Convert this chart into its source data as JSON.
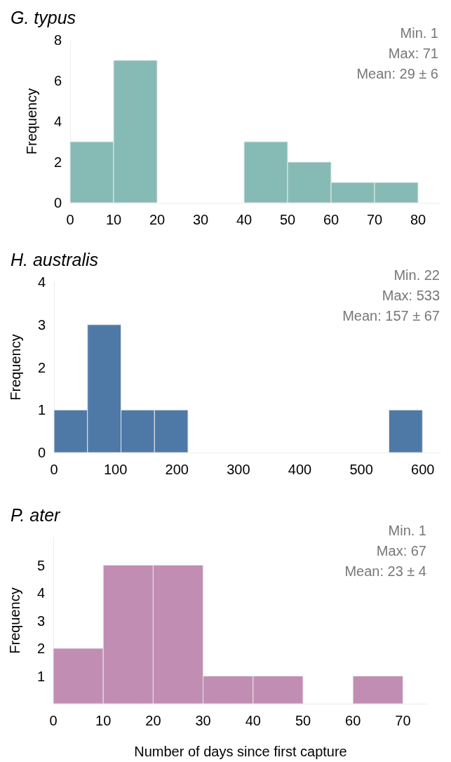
{
  "chart_data": [
    {
      "type": "histogram",
      "title": "G. typus",
      "ylabel": "Frequency",
      "bins": [
        0,
        10,
        20,
        30,
        40,
        50,
        60,
        70,
        80
      ],
      "values": [
        3,
        7,
        0,
        0,
        3,
        2,
        1,
        1
      ],
      "color": "#86bbb5",
      "xlim": [
        0,
        85
      ],
      "xticks": [
        0,
        10,
        20,
        30,
        40,
        50,
        60,
        70,
        80
      ],
      "ylim": [
        0,
        8
      ],
      "yticks": [
        0,
        2,
        4,
        6,
        8
      ],
      "grid": false,
      "annotations": [
        "Min. 1",
        "Max: 71",
        "Mean: 29 ± 6"
      ]
    },
    {
      "type": "histogram",
      "title": "H. australis",
      "ylabel": "Frequency",
      "bins": [
        0,
        54.5,
        109,
        163.5,
        218,
        272.5,
        327,
        381.5,
        436,
        490.5,
        545,
        599.5
      ],
      "values": [
        1,
        3,
        1,
        1,
        0,
        0,
        0,
        0,
        0,
        0,
        1
      ],
      "color": "#4e79a7",
      "xlim": [
        0,
        630
      ],
      "xticks": [
        0,
        100,
        200,
        300,
        400,
        500,
        600
      ],
      "ylim": [
        0,
        4
      ],
      "yticks": [
        0,
        1,
        2,
        3,
        4
      ],
      "grid": false,
      "annotations": [
        "Min. 22",
        "Max: 533",
        "Mean: 157 ± 67"
      ]
    },
    {
      "type": "histogram",
      "title": "P. ater",
      "ylabel": "Frequency",
      "xlabel": "Number of days since first capture",
      "bins": [
        0,
        10,
        20,
        30,
        40,
        50,
        60,
        70
      ],
      "values": [
        2,
        5,
        5,
        1,
        1,
        0,
        1
      ],
      "color": "#c28db3",
      "xlim": [
        0,
        75
      ],
      "xticks": [
        0,
        10,
        20,
        30,
        40,
        50,
        60,
        70
      ],
      "ylim": [
        0,
        6
      ],
      "yticks": [
        1,
        2,
        3,
        4,
        5
      ],
      "grid": false,
      "annotations": [
        "Min. 1",
        "Max: 67",
        "Mean: 23 ± 4"
      ]
    }
  ]
}
